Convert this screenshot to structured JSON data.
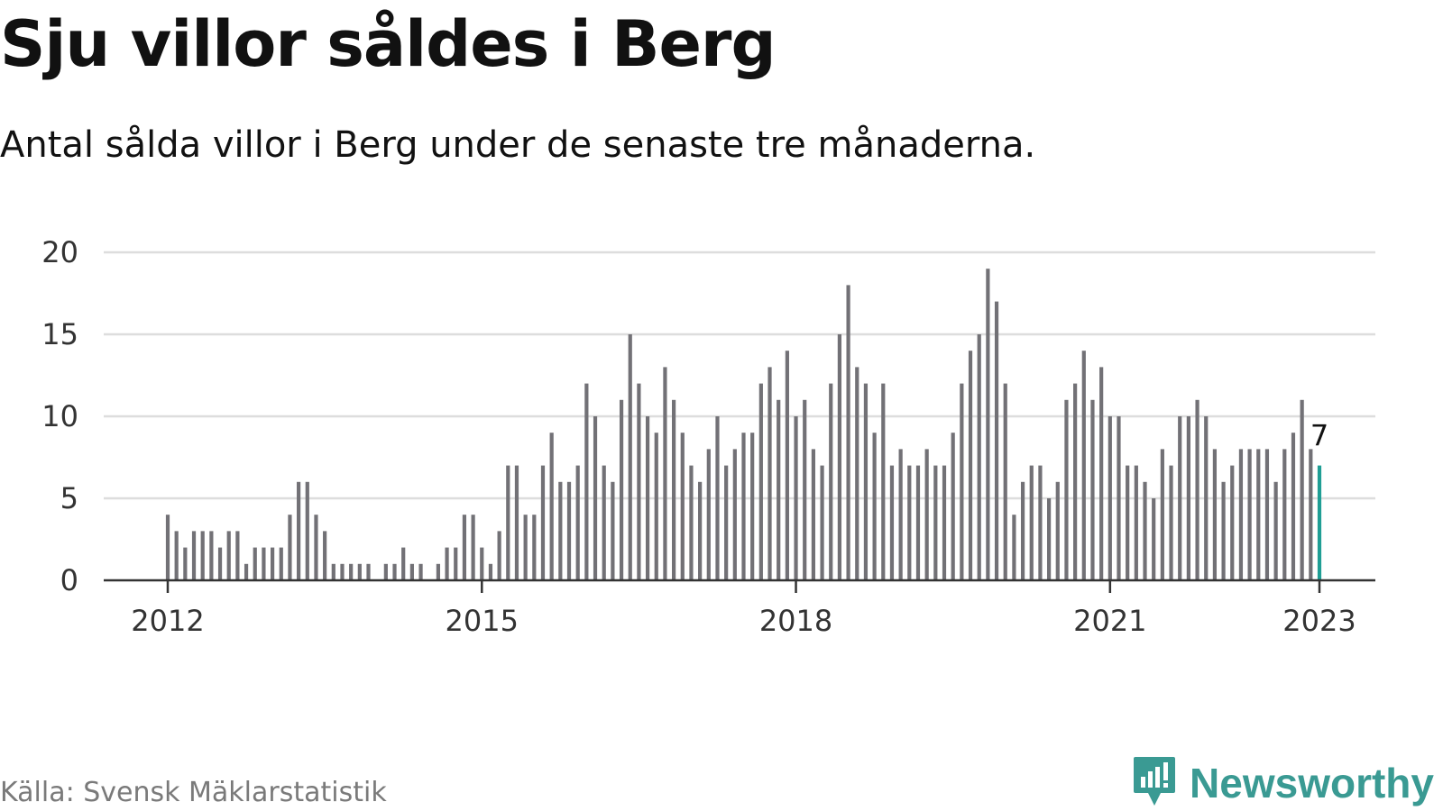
{
  "header": {
    "title": "Sju villor såldes i Berg",
    "subtitle": "Antal sålda villor i Berg under de senaste tre månaderna."
  },
  "footer": {
    "source": "Källa: Svensk Mäklarstatistik",
    "brand": "Newsworthy",
    "brand_icon": "newsworthy-logo-icon"
  },
  "colors": {
    "bar": "#727176",
    "highlight": "#1f9e95",
    "grid": "#dddddd",
    "axis": "#333333",
    "brand": "#3a9a93"
  },
  "chart_data": {
    "type": "bar",
    "title": "Sju villor såldes i Berg",
    "subtitle": "Antal sålda villor i Berg under de senaste tre månaderna.",
    "xlabel": "",
    "ylabel": "",
    "x_start": "2012-01",
    "x_end": "2023-01",
    "x": [
      "2012-01",
      "2012-02",
      "2012-03",
      "2012-04",
      "2012-05",
      "2012-06",
      "2012-07",
      "2012-08",
      "2012-09",
      "2012-10",
      "2012-11",
      "2012-12",
      "2013-01",
      "2013-02",
      "2013-03",
      "2013-04",
      "2013-05",
      "2013-06",
      "2013-07",
      "2013-08",
      "2013-09",
      "2013-10",
      "2013-11",
      "2013-12",
      "2014-01",
      "2014-02",
      "2014-03",
      "2014-04",
      "2014-05",
      "2014-06",
      "2014-07",
      "2014-08",
      "2014-09",
      "2014-10",
      "2014-11",
      "2014-12",
      "2015-01",
      "2015-02",
      "2015-03",
      "2015-04",
      "2015-05",
      "2015-06",
      "2015-07",
      "2015-08",
      "2015-09",
      "2015-10",
      "2015-11",
      "2015-12",
      "2016-01",
      "2016-02",
      "2016-03",
      "2016-04",
      "2016-05",
      "2016-06",
      "2016-07",
      "2016-08",
      "2016-09",
      "2016-10",
      "2016-11",
      "2016-12",
      "2017-01",
      "2017-02",
      "2017-03",
      "2017-04",
      "2017-05",
      "2017-06",
      "2017-07",
      "2017-08",
      "2017-09",
      "2017-10",
      "2017-11",
      "2017-12",
      "2018-01",
      "2018-02",
      "2018-03",
      "2018-04",
      "2018-05",
      "2018-06",
      "2018-07",
      "2018-08",
      "2018-09",
      "2018-10",
      "2018-11",
      "2018-12",
      "2019-01",
      "2019-02",
      "2019-03",
      "2019-04",
      "2019-05",
      "2019-06",
      "2019-07",
      "2019-08",
      "2019-09",
      "2019-10",
      "2019-11",
      "2019-12",
      "2020-01",
      "2020-02",
      "2020-03",
      "2020-04",
      "2020-05",
      "2020-06",
      "2020-07",
      "2020-08",
      "2020-09",
      "2020-10",
      "2020-11",
      "2020-12",
      "2021-01",
      "2021-02",
      "2021-03",
      "2021-04",
      "2021-05",
      "2021-06",
      "2021-07",
      "2021-08",
      "2021-09",
      "2021-10",
      "2021-11",
      "2021-12",
      "2022-01",
      "2022-02",
      "2022-03",
      "2022-04",
      "2022-05",
      "2022-06",
      "2022-07",
      "2022-08",
      "2022-09",
      "2022-10",
      "2022-11",
      "2022-12",
      "2023-01"
    ],
    "values": [
      4,
      3,
      2,
      3,
      3,
      3,
      2,
      3,
      3,
      1,
      2,
      2,
      2,
      2,
      4,
      6,
      6,
      4,
      3,
      1,
      1,
      1,
      1,
      1,
      0,
      1,
      1,
      2,
      1,
      1,
      0,
      1,
      2,
      2,
      4,
      4,
      2,
      1,
      3,
      7,
      7,
      4,
      4,
      7,
      9,
      6,
      6,
      7,
      12,
      10,
      7,
      6,
      11,
      15,
      12,
      10,
      9,
      13,
      11,
      9,
      7,
      6,
      8,
      10,
      7,
      8,
      9,
      9,
      12,
      13,
      11,
      14,
      10,
      11,
      8,
      7,
      12,
      15,
      18,
      13,
      12,
      9,
      12,
      7,
      8,
      7,
      7,
      8,
      7,
      7,
      9,
      12,
      14,
      15,
      19,
      17,
      12,
      4,
      6,
      7,
      7,
      5,
      6,
      11,
      12,
      14,
      11,
      13,
      10,
      10,
      7,
      7,
      6,
      5,
      8,
      7,
      10,
      10,
      11,
      10,
      8,
      6,
      7,
      8,
      8,
      8,
      8,
      6,
      8,
      9,
      11,
      8,
      7
    ],
    "highlight_last": true,
    "last_value_label": "7",
    "yticks": [
      0,
      5,
      10,
      15,
      20
    ],
    "xticks": [
      "2012",
      "2015",
      "2018",
      "2021",
      "2023"
    ],
    "ylim": [
      0,
      20
    ],
    "grid": true,
    "legend": "none"
  }
}
